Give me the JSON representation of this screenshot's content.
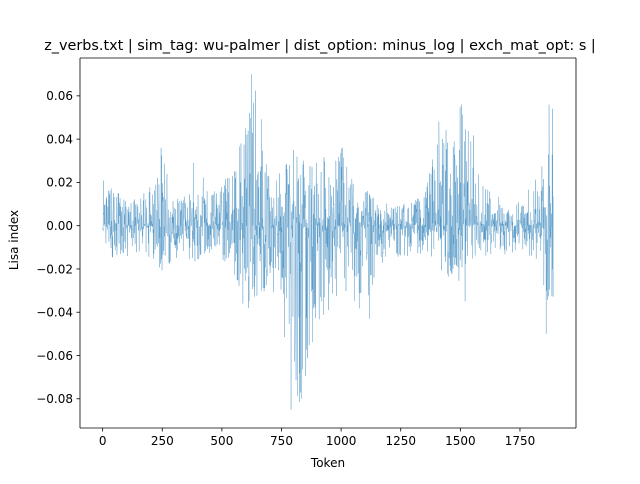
{
  "chart_data": {
    "type": "line",
    "title": "z_verbs.txt | sim_tag: wu-palmer | dist_option: minus_log | exch_mat_opt: s |",
    "xlabel": "Token",
    "ylabel": "Lisa index",
    "xlim": [
      -95,
      1985
    ],
    "ylim": [
      -0.0935,
      0.0775
    ],
    "xticks": [
      0,
      250,
      500,
      750,
      1000,
      1250,
      1500,
      1750
    ],
    "yticks": [
      -0.08,
      -0.06,
      -0.04,
      -0.02,
      0.0,
      0.02,
      0.04,
      0.06
    ],
    "xtick_labels": [
      "0",
      "250",
      "500",
      "750",
      "1000",
      "1250",
      "1500",
      "1750"
    ],
    "ytick_labels": [
      "−0.08",
      "−0.06",
      "−0.04",
      "−0.02",
      "0.00",
      "0.02",
      "0.04",
      "0.06"
    ],
    "grid": false,
    "legend": "none",
    "series": [
      {
        "color": "#1f77b4",
        "x_start": 0,
        "x_end": 1890,
        "point_count": 1891,
        "envelope_x": [
          0,
          50,
          100,
          150,
          200,
          250,
          300,
          350,
          400,
          450,
          500,
          550,
          600,
          650,
          700,
          750,
          800,
          850,
          900,
          950,
          1000,
          1050,
          1100,
          1150,
          1200,
          1250,
          1300,
          1350,
          1400,
          1450,
          1500,
          1550,
          1600,
          1650,
          1700,
          1750,
          1800,
          1850,
          1890
        ],
        "envelope_high": [
          0.022,
          0.016,
          0.014,
          0.012,
          0.02,
          0.036,
          0.012,
          0.014,
          0.03,
          0.014,
          0.02,
          0.03,
          0.045,
          0.07,
          0.02,
          0.025,
          0.035,
          0.03,
          0.034,
          0.03,
          0.036,
          0.022,
          0.018,
          0.012,
          0.01,
          0.01,
          0.012,
          0.014,
          0.04,
          0.05,
          0.056,
          0.045,
          0.02,
          0.015,
          0.01,
          0.012,
          0.02,
          0.03,
          0.056
        ],
        "envelope_low": [
          -0.005,
          -0.018,
          -0.015,
          -0.012,
          -0.015,
          -0.025,
          -0.015,
          -0.015,
          -0.02,
          -0.012,
          -0.015,
          -0.025,
          -0.035,
          -0.035,
          -0.03,
          -0.04,
          -0.085,
          -0.08,
          -0.045,
          -0.04,
          -0.03,
          -0.035,
          -0.042,
          -0.02,
          -0.015,
          -0.015,
          -0.015,
          -0.012,
          -0.018,
          -0.025,
          -0.035,
          -0.02,
          -0.015,
          -0.012,
          -0.015,
          -0.01,
          -0.015,
          -0.03,
          -0.05
        ],
        "spikes": [
          {
            "x": 245,
            "y": 0.036
          },
          {
            "x": 380,
            "y": 0.029
          },
          {
            "x": 580,
            "y": 0.038
          },
          {
            "x": 588,
            "y": -0.036
          },
          {
            "x": 600,
            "y": 0.045
          },
          {
            "x": 612,
            "y": -0.038
          },
          {
            "x": 625,
            "y": 0.07
          },
          {
            "x": 790,
            "y": -0.085
          },
          {
            "x": 800,
            "y": 0.035
          },
          {
            "x": 835,
            "y": -0.08
          },
          {
            "x": 843,
            "y": 0.03
          },
          {
            "x": 1005,
            "y": 0.036
          },
          {
            "x": 1120,
            "y": -0.043
          },
          {
            "x": 1410,
            "y": 0.048
          },
          {
            "x": 1505,
            "y": 0.056
          },
          {
            "x": 1520,
            "y": -0.035
          },
          {
            "x": 1860,
            "y": -0.05
          },
          {
            "x": 1872,
            "y": 0.056
          }
        ]
      }
    ]
  }
}
